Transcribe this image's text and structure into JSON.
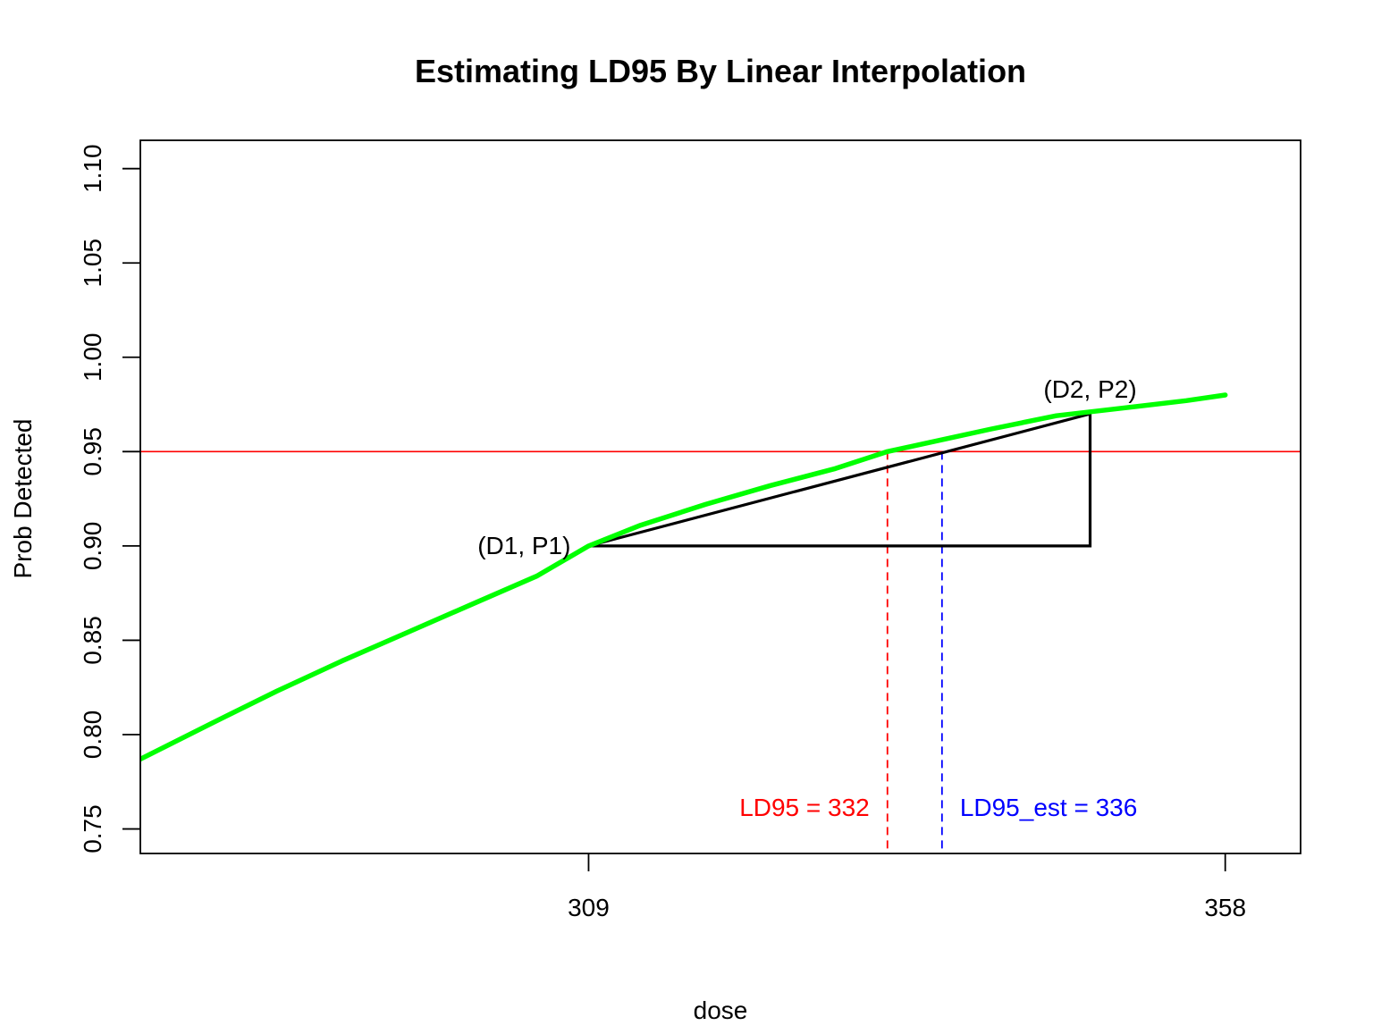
{
  "chart_data": {
    "type": "line",
    "title": "Estimating LD95 By Linear Interpolation",
    "xlabel": "dose",
    "ylabel": "Prob Detected",
    "xlim": [
      274.5,
      363.8
    ],
    "ylim": [
      0.737,
      1.115
    ],
    "x_ticks": [
      309,
      358
    ],
    "x_tick_labels": [
      "309",
      "358"
    ],
    "y_ticks": [
      0.75,
      0.8,
      0.85,
      0.9,
      0.95,
      1.0,
      1.05,
      1.1
    ],
    "y_tick_labels": [
      "0.75",
      "0.80",
      "0.85",
      "0.90",
      "0.95",
      "1.00",
      "1.05",
      "1.10"
    ],
    "grid": false,
    "colors": {
      "curve": "#00ff00",
      "reference_line": "#ff0000",
      "ld95_line": "#ff0000",
      "ld95_est_line": "#0000ff",
      "triangle": "#000000"
    },
    "curve": {
      "x": [
        274.5,
        280,
        285,
        290,
        295,
        300,
        305,
        309,
        313,
        318,
        323,
        328,
        332,
        336,
        340,
        345,
        350,
        355,
        358
      ],
      "y": [
        0.787,
        0.806,
        0.823,
        0.839,
        0.854,
        0.869,
        0.884,
        0.9,
        0.911,
        0.922,
        0.932,
        0.941,
        0.95,
        0.956,
        0.962,
        0.969,
        0.973,
        0.977,
        0.98
      ]
    },
    "reference_line": {
      "y": 0.95
    },
    "triangle": {
      "points": [
        [
          309,
          0.9
        ],
        [
          347.6,
          0.97
        ],
        [
          347.6,
          0.9
        ]
      ]
    },
    "ld95": {
      "x": 332,
      "label": "LD95 = 332"
    },
    "ld95_est": {
      "x": 336.2,
      "label": "LD95_est = 336"
    },
    "annotations": [
      {
        "text": "(D1, P1)",
        "x": 309,
        "y": 0.9
      },
      {
        "text": "(D2, P2)",
        "x": 347.6,
        "y": 0.97
      }
    ]
  }
}
